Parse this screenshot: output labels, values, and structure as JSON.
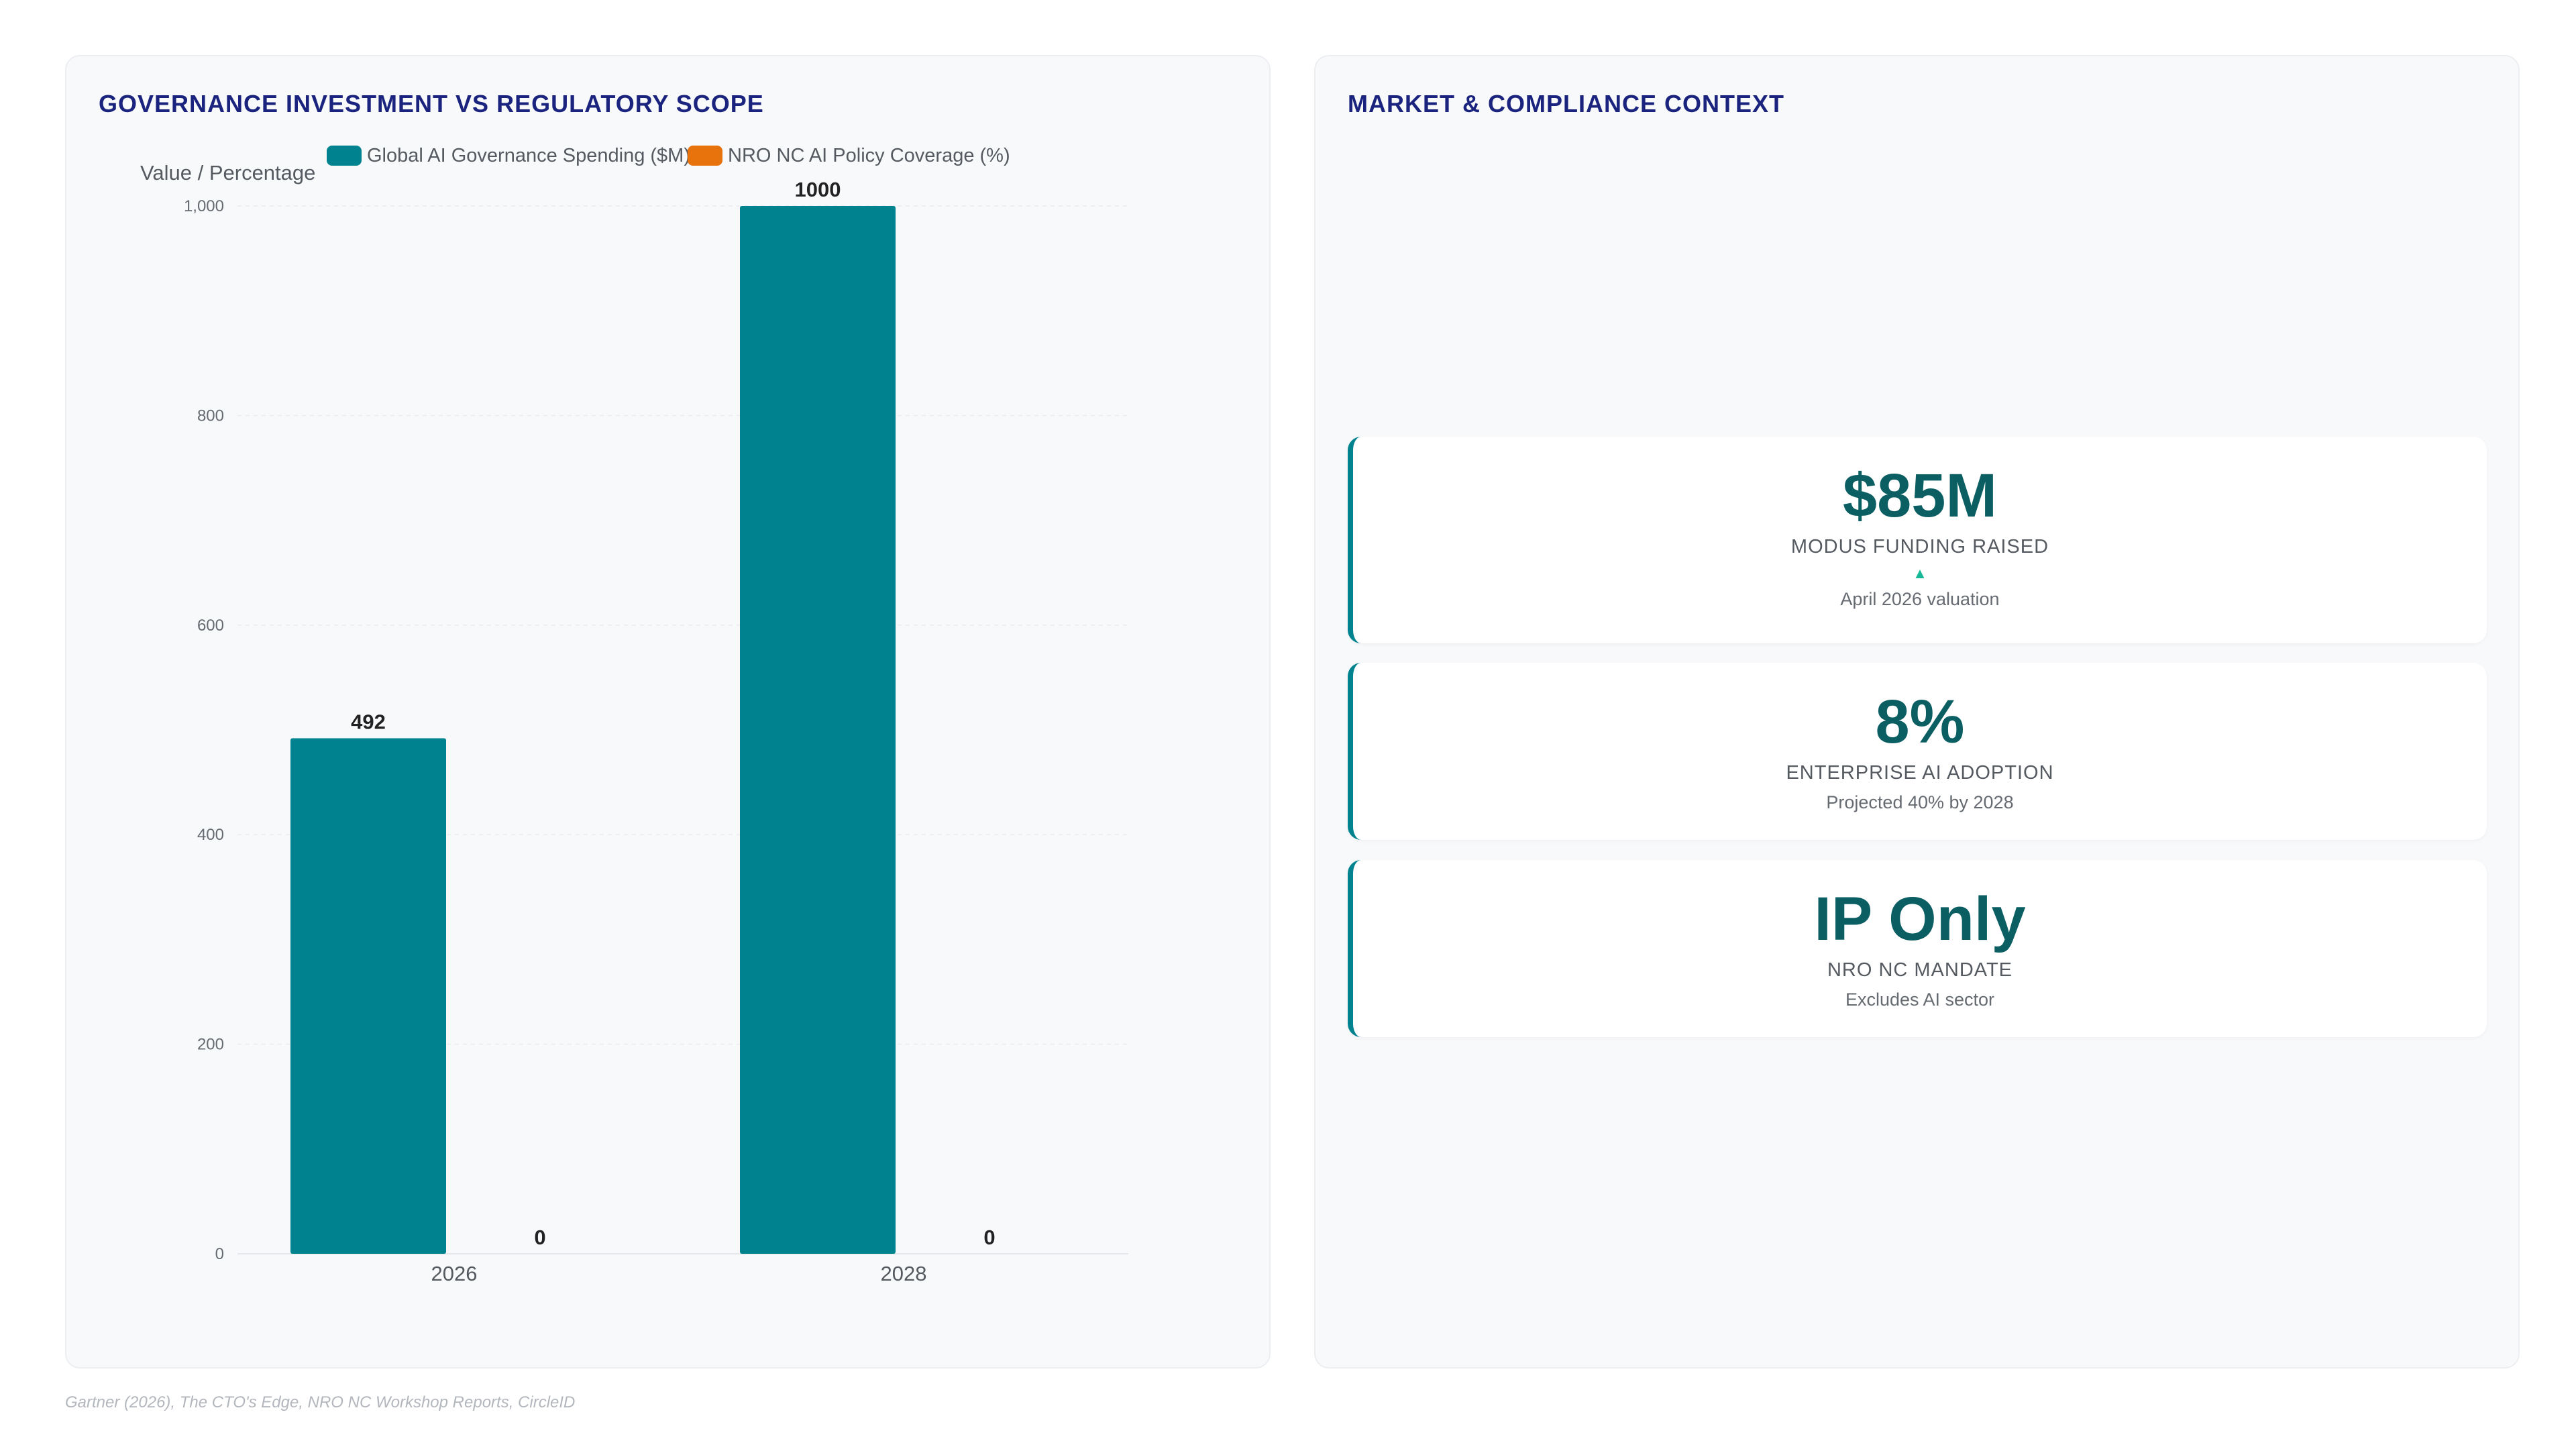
{
  "left_panel": {
    "title": "GOVERNANCE INVESTMENT VS REGULATORY SCOPE"
  },
  "right_panel": {
    "title": "MARKET & COMPLIANCE CONTEXT",
    "cards": [
      {
        "value": "$85M",
        "label": "MODUS FUNDING RAISED",
        "arrow": "▲",
        "sub": "April 2026 valuation"
      },
      {
        "value": "8%",
        "label": "ENTERPRISE AI ADOPTION",
        "sub": "Projected 40% by 2028"
      },
      {
        "value": "IP Only",
        "label": "NRO NC MANDATE",
        "sub": "Excludes AI sector"
      }
    ]
  },
  "chart_data": {
    "type": "bar",
    "categories": [
      "2026",
      "2028"
    ],
    "series": [
      {
        "name": "Global AI Governance Spending ($M)",
        "values": [
          492,
          1000
        ],
        "color": "#00838f"
      },
      {
        "name": "NRO NC AI Policy Coverage (%)",
        "values": [
          0,
          0
        ],
        "color": "#e8720c"
      }
    ],
    "ylabel": "Value / Percentage",
    "xlabel": "",
    "ylim": [
      0,
      1000
    ],
    "yticks": [
      "0",
      "200",
      "400",
      "600",
      "800",
      "1,000"
    ],
    "ytick_values": [
      0,
      200,
      400,
      600,
      800,
      1000
    ],
    "data_labels": true,
    "grid": true,
    "legend": "top"
  },
  "source": "Gartner (2026), The CTO's Edge, NRO NC Workshop Reports, CircleID"
}
